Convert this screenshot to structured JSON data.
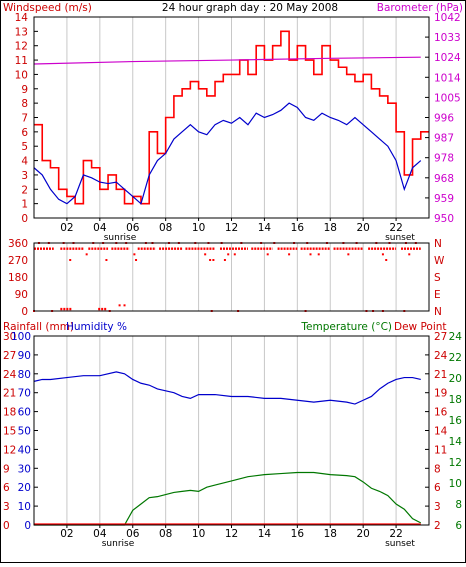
{
  "chart_data": [
    {
      "type": "line",
      "title": "24 hour graph day : 20 May 2008",
      "left_axis_label": "Windspeed (m/s)",
      "right_axis_label": "Barometer (hPa)",
      "left_ticks": [
        "0",
        "1",
        "2",
        "3",
        "4",
        "5",
        "6",
        "7",
        "8",
        "9",
        "10",
        "11",
        "12",
        "13",
        "14"
      ],
      "right_ticks": [
        "950",
        "959",
        "968",
        "978",
        "987",
        "996",
        "1005",
        "1014",
        "1024",
        "1033",
        "1042"
      ],
      "x_ticks": [
        "02",
        "04",
        "06",
        "08",
        "10",
        "12",
        "14",
        "16",
        "18",
        "20",
        "22"
      ],
      "sunrise_label": "sunrise",
      "sunset_label": "sunset",
      "series": [
        {
          "name": "Gust",
          "color": "#ff0000",
          "axis": "left",
          "x": [
            0,
            0.5,
            1,
            1.5,
            2,
            2.5,
            3,
            3.5,
            4,
            4.5,
            5,
            5.5,
            6,
            6.5,
            7,
            7.5,
            8,
            8.5,
            9,
            9.5,
            10,
            10.5,
            11,
            11.5,
            12,
            12.5,
            13,
            13.5,
            14,
            14.5,
            15,
            15.5,
            16,
            16.5,
            17,
            17.5,
            18,
            18.5,
            19,
            19.5,
            20,
            20.5,
            21,
            21.5,
            22,
            22.5,
            23,
            23.5
          ],
          "y": [
            6.5,
            4,
            3.5,
            2,
            1.5,
            1,
            4,
            3.5,
            2,
            3,
            2,
            1,
            1.5,
            1,
            6,
            4.5,
            7,
            8.5,
            9,
            9.5,
            9,
            8.5,
            9.5,
            10,
            10,
            11,
            10,
            12,
            11,
            12,
            13,
            11,
            12,
            11,
            10,
            12,
            11,
            10.5,
            10,
            9.5,
            10,
            9,
            8.5,
            8,
            6,
            3,
            5.5,
            6
          ]
        },
        {
          "name": "Average",
          "color": "#0000cc",
          "axis": "left",
          "x": [
            0,
            0.5,
            1,
            1.5,
            2,
            2.5,
            3,
            3.5,
            4,
            4.5,
            5,
            5.5,
            6,
            6.5,
            7,
            7.5,
            8,
            8.5,
            9,
            9.5,
            10,
            10.5,
            11,
            11.5,
            12,
            12.5,
            13,
            13.5,
            14,
            14.5,
            15,
            15.5,
            16,
            16.5,
            17,
            17.5,
            18,
            18.5,
            19,
            19.5,
            20,
            20.5,
            21,
            21.5,
            22,
            22.5,
            23,
            23.5
          ],
          "y": [
            3.5,
            3,
            2,
            1.3,
            1,
            1.5,
            3,
            2.8,
            2.5,
            2.4,
            2.5,
            2,
            1.5,
            1,
            3,
            4,
            4.5,
            5.5,
            6,
            6.5,
            6,
            5.8,
            6.5,
            6.8,
            6.6,
            7,
            6.5,
            7.3,
            7,
            7.2,
            7.5,
            8,
            7.7,
            7,
            6.8,
            7.3,
            7,
            6.8,
            6.5,
            7,
            6.5,
            6,
            5.5,
            5,
            4,
            2,
            3.5,
            4
          ]
        },
        {
          "name": "Barometer",
          "color": "#cc00cc",
          "axis": "right",
          "x": [
            0,
            6,
            12,
            18,
            23.5
          ],
          "y": [
            1020.5,
            1021.6,
            1022.3,
            1023.1,
            1023.6
          ]
        }
      ]
    },
    {
      "type": "scatter",
      "title": "Wind direction",
      "left_ticks": [
        "0",
        "90",
        "180",
        "270",
        "360"
      ],
      "right_ticks": [
        "N",
        "E",
        "S",
        "W",
        "N"
      ],
      "x_ticks": [
        "02",
        "04",
        "06",
        "08",
        "10",
        "12",
        "14",
        "16",
        "18",
        "20",
        "22"
      ],
      "series": [
        {
          "name": "Direction",
          "color": "#ff0000",
          "runs_330": [
            [
              0,
              1.2
            ],
            [
              1.6,
              3
            ],
            [
              3.3,
              4.5
            ],
            [
              4.7,
              5.8
            ],
            [
              6.3,
              7.4
            ],
            [
              7.6,
              9
            ],
            [
              9.2,
              11
            ],
            [
              11.3,
              13
            ],
            [
              13.2,
              14.5
            ],
            [
              14.8,
              16
            ],
            [
              16.2,
              18
            ],
            [
              18.2,
              20
            ],
            [
              20.3,
              22
            ],
            [
              22.3,
              23.5
            ]
          ],
          "scatter_360": [
            0.3,
            0.9,
            1.8,
            2.4,
            3.6,
            4.2,
            5,
            5.6,
            6.8,
            7.2,
            8.2,
            8.8,
            9.8,
            10.6,
            11.4,
            12.6,
            13.8,
            14.6,
            15.8,
            16.6,
            17.8,
            18.8,
            19.6,
            20.8,
            21.6,
            22.6,
            23.2
          ],
          "scatter_300": [
            3.2,
            6.1,
            10.4,
            11.8,
            12.2,
            14.2,
            15.5,
            16.8,
            17.3,
            19.1,
            21.2,
            22.8
          ],
          "scatter_270": [
            2.2,
            4.4,
            6.2,
            10.7,
            10.9,
            11.6,
            21.4
          ],
          "runs_10": [
            [
              1.6,
              2.3
            ],
            [
              3.9,
              4.4
            ]
          ],
          "scatter_0": [
            0,
            1.1,
            4.6,
            10.8,
            12.4,
            16.5,
            20.2,
            20.6,
            21.2,
            22.5
          ],
          "scatter_30": [
            5.2,
            5.5
          ]
        }
      ]
    },
    {
      "type": "line",
      "title": "Rainfall, Humidity, Temperature, Dew Point",
      "rain_axis_label": "Rainfall (mm)",
      "humidity_axis_label": "Humidity %",
      "temperature_axis_label": "Temperature (°C)",
      "dewpoint_axis_label": "Dew Point",
      "rain_ticks": [
        "0",
        "3",
        "6",
        "9",
        "12",
        "15",
        "18",
        "21",
        "24",
        "27",
        "30"
      ],
      "humidity_ticks": [
        "0",
        "10",
        "20",
        "30",
        "40",
        "50",
        "60",
        "70",
        "80",
        "90",
        "100"
      ],
      "temperature_ticks": [
        "6",
        "8",
        "10",
        "12",
        "14",
        "16",
        "18",
        "20",
        "22",
        "24"
      ],
      "dewpoint_ticks": [
        "2",
        "3",
        "6",
        "8",
        "11",
        "14",
        "16",
        "19",
        "21",
        "24",
        "27"
      ],
      "x_ticks": [
        "02",
        "04",
        "06",
        "08",
        "10",
        "12",
        "14",
        "16",
        "18",
        "20",
        "22"
      ],
      "sunrise_label": "sunrise",
      "sunset_label": "sunset",
      "series": [
        {
          "name": "Humidity",
          "color": "#0000cc",
          "axis": "humidity",
          "x": [
            0,
            0.5,
            1,
            2,
            3,
            4,
            5,
            5.5,
            6,
            6.5,
            7,
            7.5,
            8,
            8.5,
            9,
            9.5,
            10,
            11,
            12,
            13,
            14,
            15,
            16,
            17,
            18,
            19,
            19.5,
            20,
            20.5,
            21,
            21.5,
            22,
            22.5,
            23,
            23.5
          ],
          "y": [
            76,
            77,
            77,
            78,
            79,
            79,
            81,
            80,
            77,
            75,
            74,
            72,
            71,
            70,
            68,
            67,
            69,
            69,
            68,
            68,
            67,
            67,
            66,
            65,
            66,
            65,
            64,
            66,
            68,
            72,
            75,
            77,
            78,
            78,
            77
          ]
        },
        {
          "name": "Temperature",
          "color": "#007700",
          "axis": "temperature",
          "x": [
            0,
            5,
            5.5,
            6,
            6.5,
            7,
            7.5,
            8,
            8.5,
            9,
            9.5,
            10,
            10.5,
            11,
            12,
            13,
            14,
            15,
            16,
            17,
            18,
            19,
            19.5,
            20,
            20.5,
            21,
            21.5,
            22,
            22.5,
            23,
            23.5
          ],
          "y": [
            6,
            6,
            6,
            7.4,
            8,
            8.6,
            8.7,
            8.9,
            9.1,
            9.2,
            9.3,
            9.2,
            9.6,
            9.8,
            10.2,
            10.6,
            10.8,
            10.9,
            11,
            11,
            10.8,
            10.7,
            10.6,
            10.1,
            9.5,
            9.2,
            8.8,
            8,
            7.5,
            6.6,
            6.2
          ]
        },
        {
          "name": "Rainfall",
          "color": "#ff0000",
          "axis": "rain",
          "x": [
            0,
            23.5
          ],
          "y": [
            0,
            0
          ]
        }
      ]
    }
  ]
}
